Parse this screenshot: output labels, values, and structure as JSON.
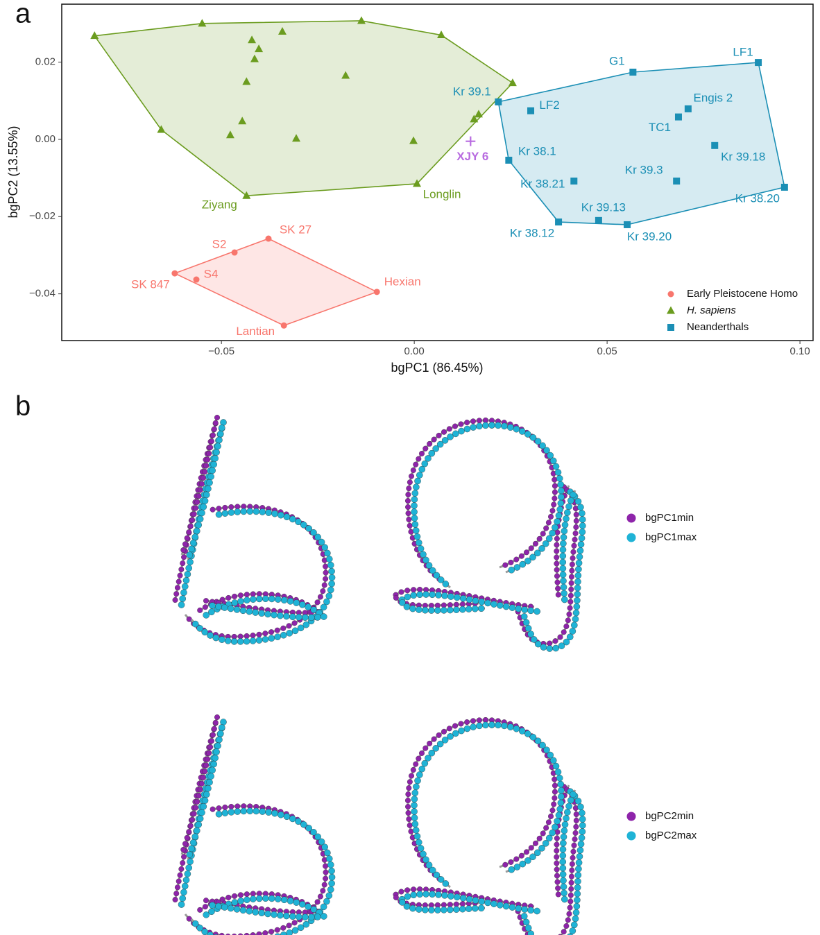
{
  "chart_data": {
    "type": "scatter",
    "panel_label": "a",
    "xlabel": "bgPC1 (86.45%)",
    "ylabel": "bgPC2 (13.55%)",
    "xlim": [
      -0.0914,
      0.1034
    ],
    "ylim": [
      -0.0521,
      0.035
    ],
    "xticks": [
      {
        "value": -0.05,
        "label": "−0.05"
      },
      {
        "value": 0,
        "label": "0.00"
      },
      {
        "value": 0.05,
        "label": "0.05"
      },
      {
        "value": 0.1,
        "label": "0.10"
      }
    ],
    "yticks": [
      {
        "value": 0.02,
        "label": "0.02"
      },
      {
        "value": 0,
        "label": "0.00"
      },
      {
        "value": -0.02,
        "label": "−0.02"
      },
      {
        "value": -0.04,
        "label": "−0.04"
      }
    ],
    "legend": "bottom-right",
    "series": [
      {
        "name": "Early Pleistocene Homo",
        "color": "#f8766d",
        "marker": "circle",
        "labels": [
          "SK 27",
          "S2",
          "SK 847",
          "S4",
          "Hexian",
          "Lantian"
        ],
        "x": [
          -0.0378,
          -0.0466,
          -0.0621,
          -0.0565,
          -0.0097,
          -0.0338
        ],
        "y": [
          -0.0257,
          -0.0293,
          -0.0347,
          -0.0363,
          -0.0395,
          -0.0482
        ]
      },
      {
        "name": "H. sapiens",
        "color": "#6b9c1f",
        "marker": "triangle",
        "labels": [
          null,
          null,
          null,
          null,
          null,
          "Longlin",
          "Ziyang",
          null,
          null,
          null,
          null,
          null,
          null,
          null,
          null,
          null,
          null,
          null,
          null,
          null
        ],
        "x": [
          -0.0829,
          -0.055,
          -0.0137,
          0.007,
          0.0255,
          0.0007,
          -0.0435,
          -0.0656,
          -0.0421,
          -0.0342,
          -0.0403,
          -0.0414,
          -0.0435,
          -0.0178,
          -0.0446,
          -0.0477,
          -0.0306,
          -0.0002,
          0.0167,
          0.0155
        ],
        "y": [
          0.0268,
          0.03,
          0.0307,
          0.027,
          0.0146,
          -0.0115,
          -0.0146,
          0.0025,
          0.0257,
          0.0279,
          0.0234,
          0.0208,
          0.0149,
          0.0165,
          0.0047,
          0.0011,
          0.0002,
          -0.0004,
          0.0065,
          0.0052
        ]
      },
      {
        "name": "Neanderthals",
        "color": "#1b8fb5",
        "marker": "square",
        "labels": [
          "Kr 39.1",
          "LF2",
          "G1",
          "LF1",
          "Engis 2",
          "TC1",
          "Kr 39.18",
          "Kr 38.1",
          "Kr 38.21",
          "Kr 39.3",
          "Kr 38.20",
          "Kr 39.13",
          "Kr 39.20",
          "Kr 38.12"
        ],
        "x": [
          0.0218,
          0.0302,
          0.0567,
          0.0892,
          0.071,
          0.0685,
          0.0779,
          0.0245,
          0.0414,
          0.068,
          0.096,
          0.0478,
          0.0552,
          0.0374
        ],
        "y": [
          0.0097,
          0.0074,
          0.0174,
          0.0199,
          0.0079,
          0.0058,
          -0.0016,
          -0.0054,
          -0.0108,
          -0.0108,
          -0.0124,
          -0.021,
          -0.0221,
          -0.0214
        ]
      }
    ],
    "annotations": [
      {
        "text": "XJY 6",
        "x": 0.0146,
        "y": -0.0005,
        "color": "#b86be0"
      }
    ]
  },
  "panel_b": {
    "label": "b",
    "legends": [
      {
        "items": [
          {
            "name": "bgPC1min",
            "color": "#8e24aa"
          },
          {
            "name": "bgPC1max",
            "color": "#1fb3d6"
          }
        ]
      },
      {
        "items": [
          {
            "name": "bgPC2min",
            "color": "#8e24aa"
          },
          {
            "name": "bgPC2max",
            "color": "#1fb3d6"
          }
        ]
      }
    ]
  }
}
